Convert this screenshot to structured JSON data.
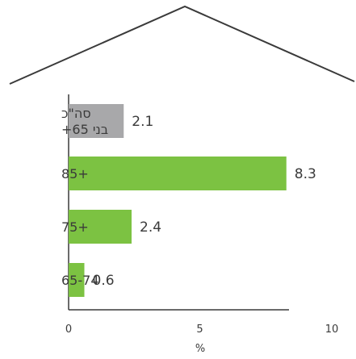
{
  "chart_data": {
    "type": "bar",
    "orientation": "horizontal",
    "categories": [
      [
        "סה\"כ",
        "בני 65+"
      ],
      [
        "85+"
      ],
      [
        "75+"
      ],
      [
        "65-74"
      ]
    ],
    "values": [
      2.1,
      8.3,
      2.4,
      0.6
    ],
    "value_labels": [
      "2.1",
      "8.3",
      "2.4",
      "0.6"
    ],
    "bar_colors": [
      "#a8a8aa",
      "#7cc242",
      "#7cc242",
      "#7cc242"
    ],
    "xlim": [
      0,
      10
    ],
    "xticks": [
      "0",
      "5",
      "10"
    ],
    "xlabel": "%",
    "grid": false,
    "decoration": "house-roof-outline"
  }
}
